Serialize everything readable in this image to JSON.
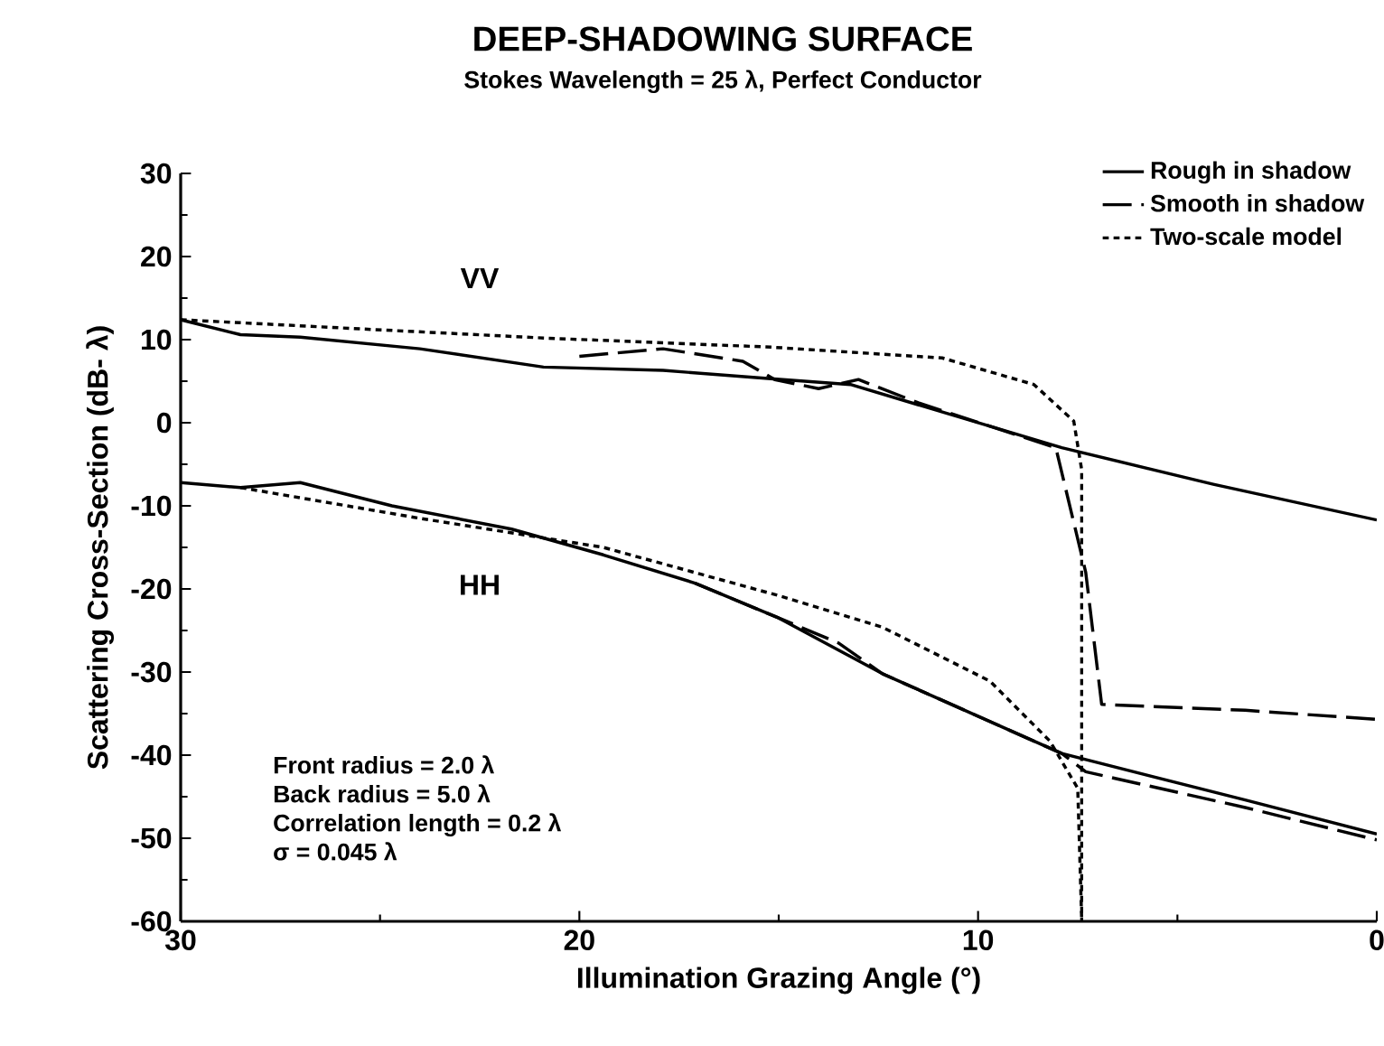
{
  "chart_data": {
    "type": "line",
    "title": "DEEP-SHADOWING SURFACE",
    "subtitle": "Stokes Wavelength = 25 λ, Perfect Conductor",
    "xlabel": "Illumination Grazing Angle (°)",
    "ylabel": "Scattering Cross-Section (dB- λ)",
    "xlim": [
      30,
      0
    ],
    "xticks": [
      30,
      20,
      10,
      0
    ],
    "ylim": [
      -60,
      30
    ],
    "yticks": [
      -60,
      -50,
      -40,
      -30,
      -20,
      -10,
      0,
      10,
      20,
      30
    ],
    "grid": false,
    "legend": "top right",
    "marker": "none",
    "series": [
      {
        "name": "Rough in shadow",
        "color": "#000000",
        "line_style": "solid",
        "x": [
          30,
          28.5,
          27,
          24,
          20.9,
          17.9,
          15.2,
          13.2,
          7.9,
          4.1,
          0
        ],
        "values": [
          12.4,
          10.6,
          10.3,
          8.9,
          6.7,
          6.3,
          5.3,
          4.6,
          -3,
          -7.4,
          -11.7
        ]
      },
      {
        "name": "Smooth in shadow",
        "color": "#000000",
        "line_style": "dashed",
        "x": [
          20,
          17.9,
          15.9,
          15.1,
          14,
          13,
          11.5,
          8.05,
          7.3,
          6.9,
          3.3,
          0
        ],
        "values": [
          8.0,
          8.9,
          7.4,
          5.2,
          4.1,
          5.2,
          2.4,
          -3,
          -18,
          -33.9,
          -34.6,
          -35.7
        ]
      },
      {
        "name": "Two-scale model",
        "color": "#000000",
        "line_style": "dotted",
        "x": [
          30,
          25.5,
          20.9,
          15.2,
          10.9,
          8.6,
          7.6,
          7.4,
          7.4
        ],
        "values": [
          12.4,
          11.3,
          10.2,
          9.1,
          7.8,
          4.6,
          0.2,
          -5.7,
          -60
        ]
      },
      {
        "color": "#000000",
        "line_style": "solid",
        "x": [
          30,
          28.5,
          27,
          24.7,
          21.7,
          19.4,
          17.1,
          15.0,
          12.4,
          7.9,
          3.3,
          0
        ],
        "values": [
          -7.2,
          -7.8,
          -7.2,
          -10,
          -12.8,
          -15.9,
          -19.3,
          -23.5,
          -30.2,
          -39.8,
          -45.4,
          -49.5
        ]
      },
      {
        "color": "#000000",
        "line_style": "dashed",
        "x": [
          17.1,
          15.0,
          13.5,
          12.4,
          7.9,
          7.3,
          3.3,
          0
        ],
        "values": [
          -19.3,
          -23.5,
          -26.5,
          -30.2,
          -39.8,
          -42,
          -46.3,
          -50.2
        ]
      },
      {
        "color": "#000000",
        "line_style": "dotted",
        "x": [
          28.5,
          24,
          19.4,
          15.0,
          12.4,
          9.7,
          8.2,
          7.5,
          7.4
        ],
        "values": [
          -7.8,
          -11.5,
          -15,
          -20.8,
          -24.6,
          -31.1,
          -38.3,
          -44,
          -60
        ]
      }
    ],
    "annotations": [
      "VV",
      "HH",
      "Front radius = 2.0 λ",
      "Back radius = 5.0 λ",
      "Correlation length = 0.2 λ",
      "σ = 0.045 λ"
    ]
  }
}
